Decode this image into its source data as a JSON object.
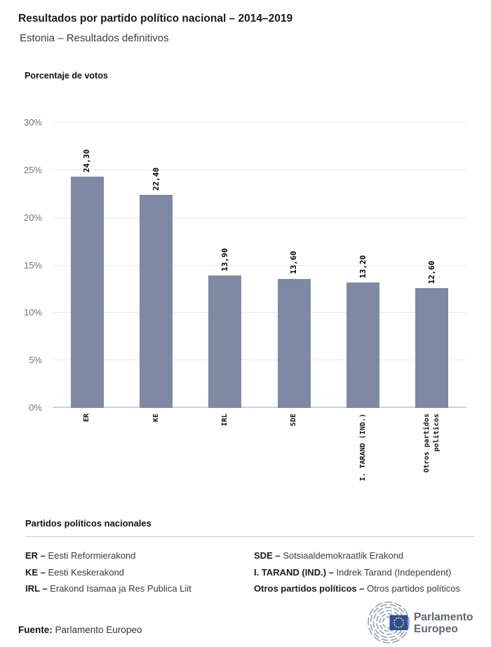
{
  "header": {
    "title": "Resultados por partido político nacional – 2014–2019",
    "subtitle": "Estonia – Resultados definitivos"
  },
  "chart_data": {
    "type": "bar",
    "title": "Porcentaje de votos",
    "ylabel": "Porcentaje de votos",
    "xlabel": "",
    "categories": [
      "ER",
      "KE",
      "IRL",
      "SDE",
      "I. TARAND (IND.)",
      "Otros partidos\npolíticos"
    ],
    "values": [
      24.3,
      22.4,
      13.9,
      13.6,
      13.2,
      12.6
    ],
    "value_labels": [
      "24,30",
      "22,40",
      "13,90",
      "13,60",
      "13,20",
      "12,60"
    ],
    "ylim": [
      0,
      30
    ],
    "ytick_values": [
      0,
      5,
      10,
      15,
      20,
      25,
      30
    ],
    "ytick_labels": [
      "0%",
      "5%",
      "10%",
      "15%",
      "20%",
      "25%",
      "30%"
    ],
    "grid": true,
    "legend_position": "none",
    "bar_color": "#7f89a4"
  },
  "legend": {
    "heading": "Partidos políticos nacionales",
    "separator": "–",
    "items": [
      {
        "abbr": "ER",
        "name": "Eesti Reformierakond"
      },
      {
        "abbr": "KE",
        "name": "Eesti Keskerakond"
      },
      {
        "abbr": "IRL",
        "name": "Erakond Isamaa ja Res Publica Liit"
      },
      {
        "abbr": "SDE",
        "name": "Sotsiaaldemokraatlik Erakond"
      },
      {
        "abbr": "I. TARAND (IND.)",
        "name": "Indrek Tarand (Independent)"
      },
      {
        "abbr": "Otros partidos políticos",
        "name": "Otros partidos políticos"
      }
    ]
  },
  "footer": {
    "source_label": "Fuente:",
    "source_value": "Parlamento Europeo",
    "logo_line1": "Parlamento",
    "logo_line2": "Europeo"
  },
  "colors": {
    "bar": "#7f89a4",
    "gridline": "#e8e8e8",
    "axis_baseline": "#c9d3e4",
    "tick_text": "#757575",
    "eu_flag_blue": "#2a4b9e",
    "star_yellow": "#fbd116",
    "logo_gray": "#96a0a9",
    "logo_text": "#5c6773"
  }
}
